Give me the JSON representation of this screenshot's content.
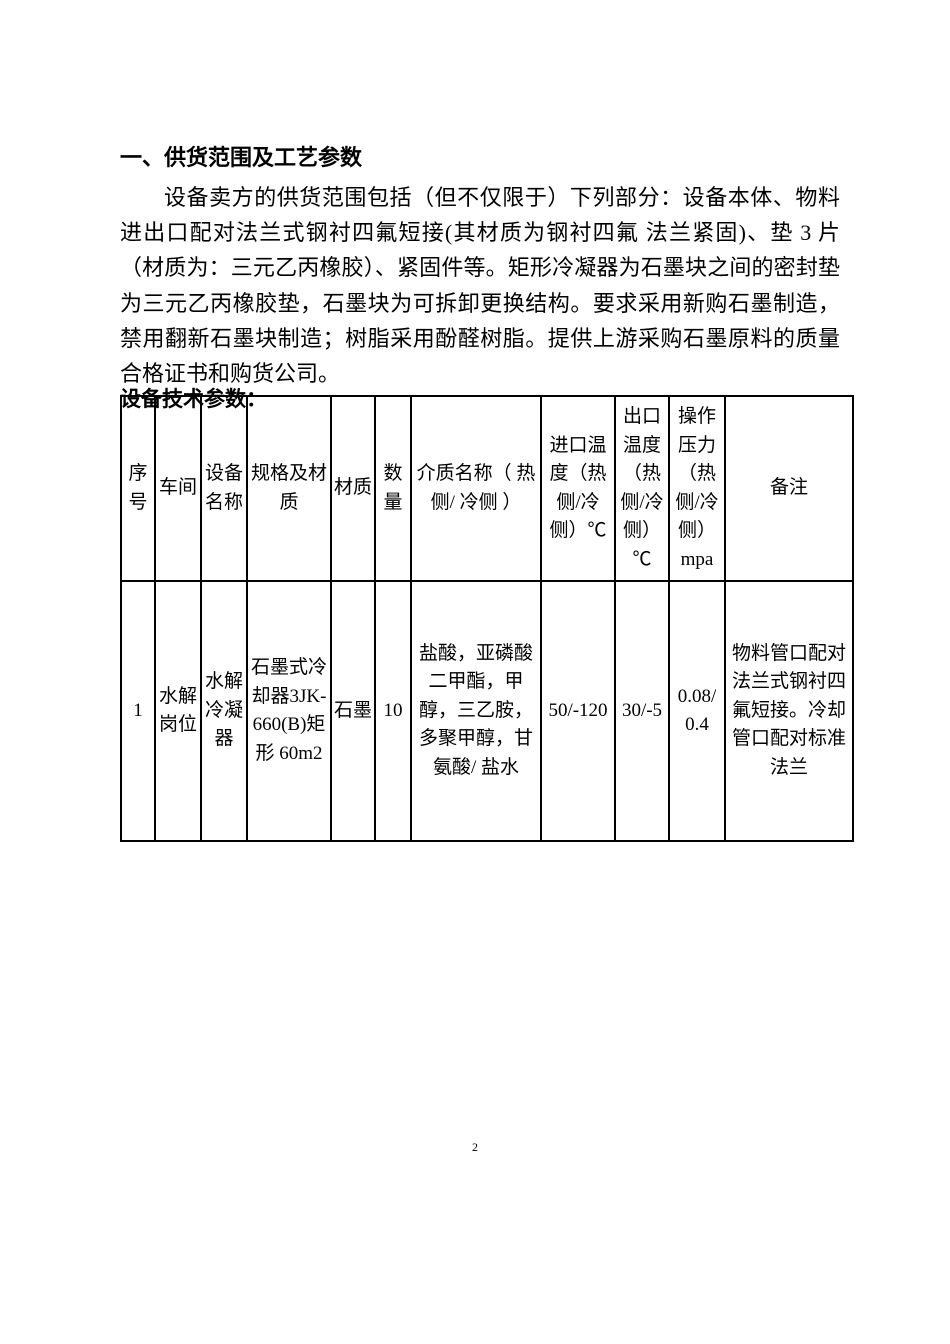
{
  "section": {
    "title": "一、供货范围及工艺参数",
    "body": "设备卖方的供货范围包括（但不仅限于）下列部分：设备本体、物料进出口配对法兰式钢衬四氟短接(其材质为钢衬四氟 法兰紧固)、垫 3 片（材质为：三元乙丙橡胶）、紧固件等。矩形冷凝器为石墨块之间的密封垫为三元乙丙橡胶垫，石墨块为可拆卸更换结构。要求采用新购石墨制造，禁用翻新石墨块制造；树脂采用酚醛树脂。提供上游采购石墨原料的质量合格证书和购货公司。"
  },
  "param_title": "设备技术参数：",
  "table": {
    "headers": {
      "seq": "序号",
      "workshop": "车间",
      "equip_name": "设备名称",
      "spec": "规格及材质",
      "material": "材质",
      "qty": "数量",
      "medium": "介质名称（ 热侧/ 冷侧 ）",
      "inlet": "进口温度（热侧/冷侧）℃",
      "outlet": "出口温度（热侧/冷侧）℃",
      "pressure": "操作压力（热侧/冷侧）mpa",
      "remark": "备注"
    },
    "row": {
      "seq": "1",
      "workshop": "水解岗位",
      "equip_name": "水解冷凝器",
      "spec": "石墨式冷却器3JK-660(B)矩形 60m2",
      "material": "石墨",
      "qty": "10",
      "medium": "盐酸，亚磷酸二甲酯，甲醇，三乙胺，多聚甲醇，甘氨酸/ 盐水",
      "inlet": "50/-120",
      "outlet": "30/-5",
      "pressure": "0.08/0.4",
      "remark": "物料管口配对法兰式钢衬四氟短接。冷却管口配对标准法兰"
    }
  },
  "page_number": "2"
}
